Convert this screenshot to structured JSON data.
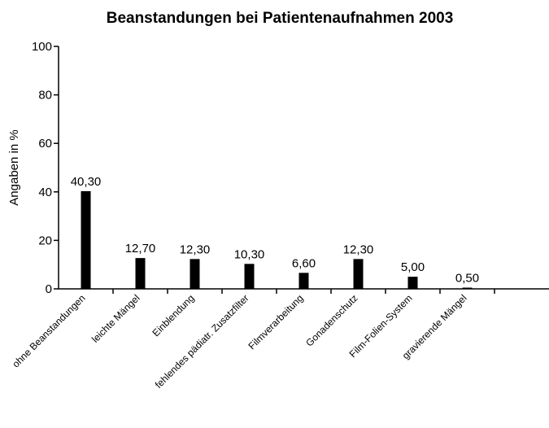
{
  "chart_data": {
    "type": "bar",
    "title": "Beanstandungen bei Patientenaufnahmen 2003",
    "y_label": "Angaben in %",
    "categories": [
      "ohne Beanstandungen",
      "leichte Mängel",
      "Einblendung",
      "fehlendes pädiatr. Zusatzfilter",
      "Filmverarbeitung",
      "Gonadenschutz",
      "Film-Folien-System",
      "gravierende Mängel"
    ],
    "values": [
      40.3,
      12.7,
      12.3,
      10.3,
      6.6,
      12.3,
      5.0,
      0.5
    ],
    "value_labels": [
      "40,30",
      "12,70",
      "12,30",
      "10,30",
      "6,60",
      "12,30",
      "5,00",
      "0,50"
    ],
    "color": "#000000",
    "ylim": [
      0,
      100
    ],
    "yticks": [
      0,
      20,
      40,
      60,
      80,
      100
    ],
    "grid": false
  }
}
